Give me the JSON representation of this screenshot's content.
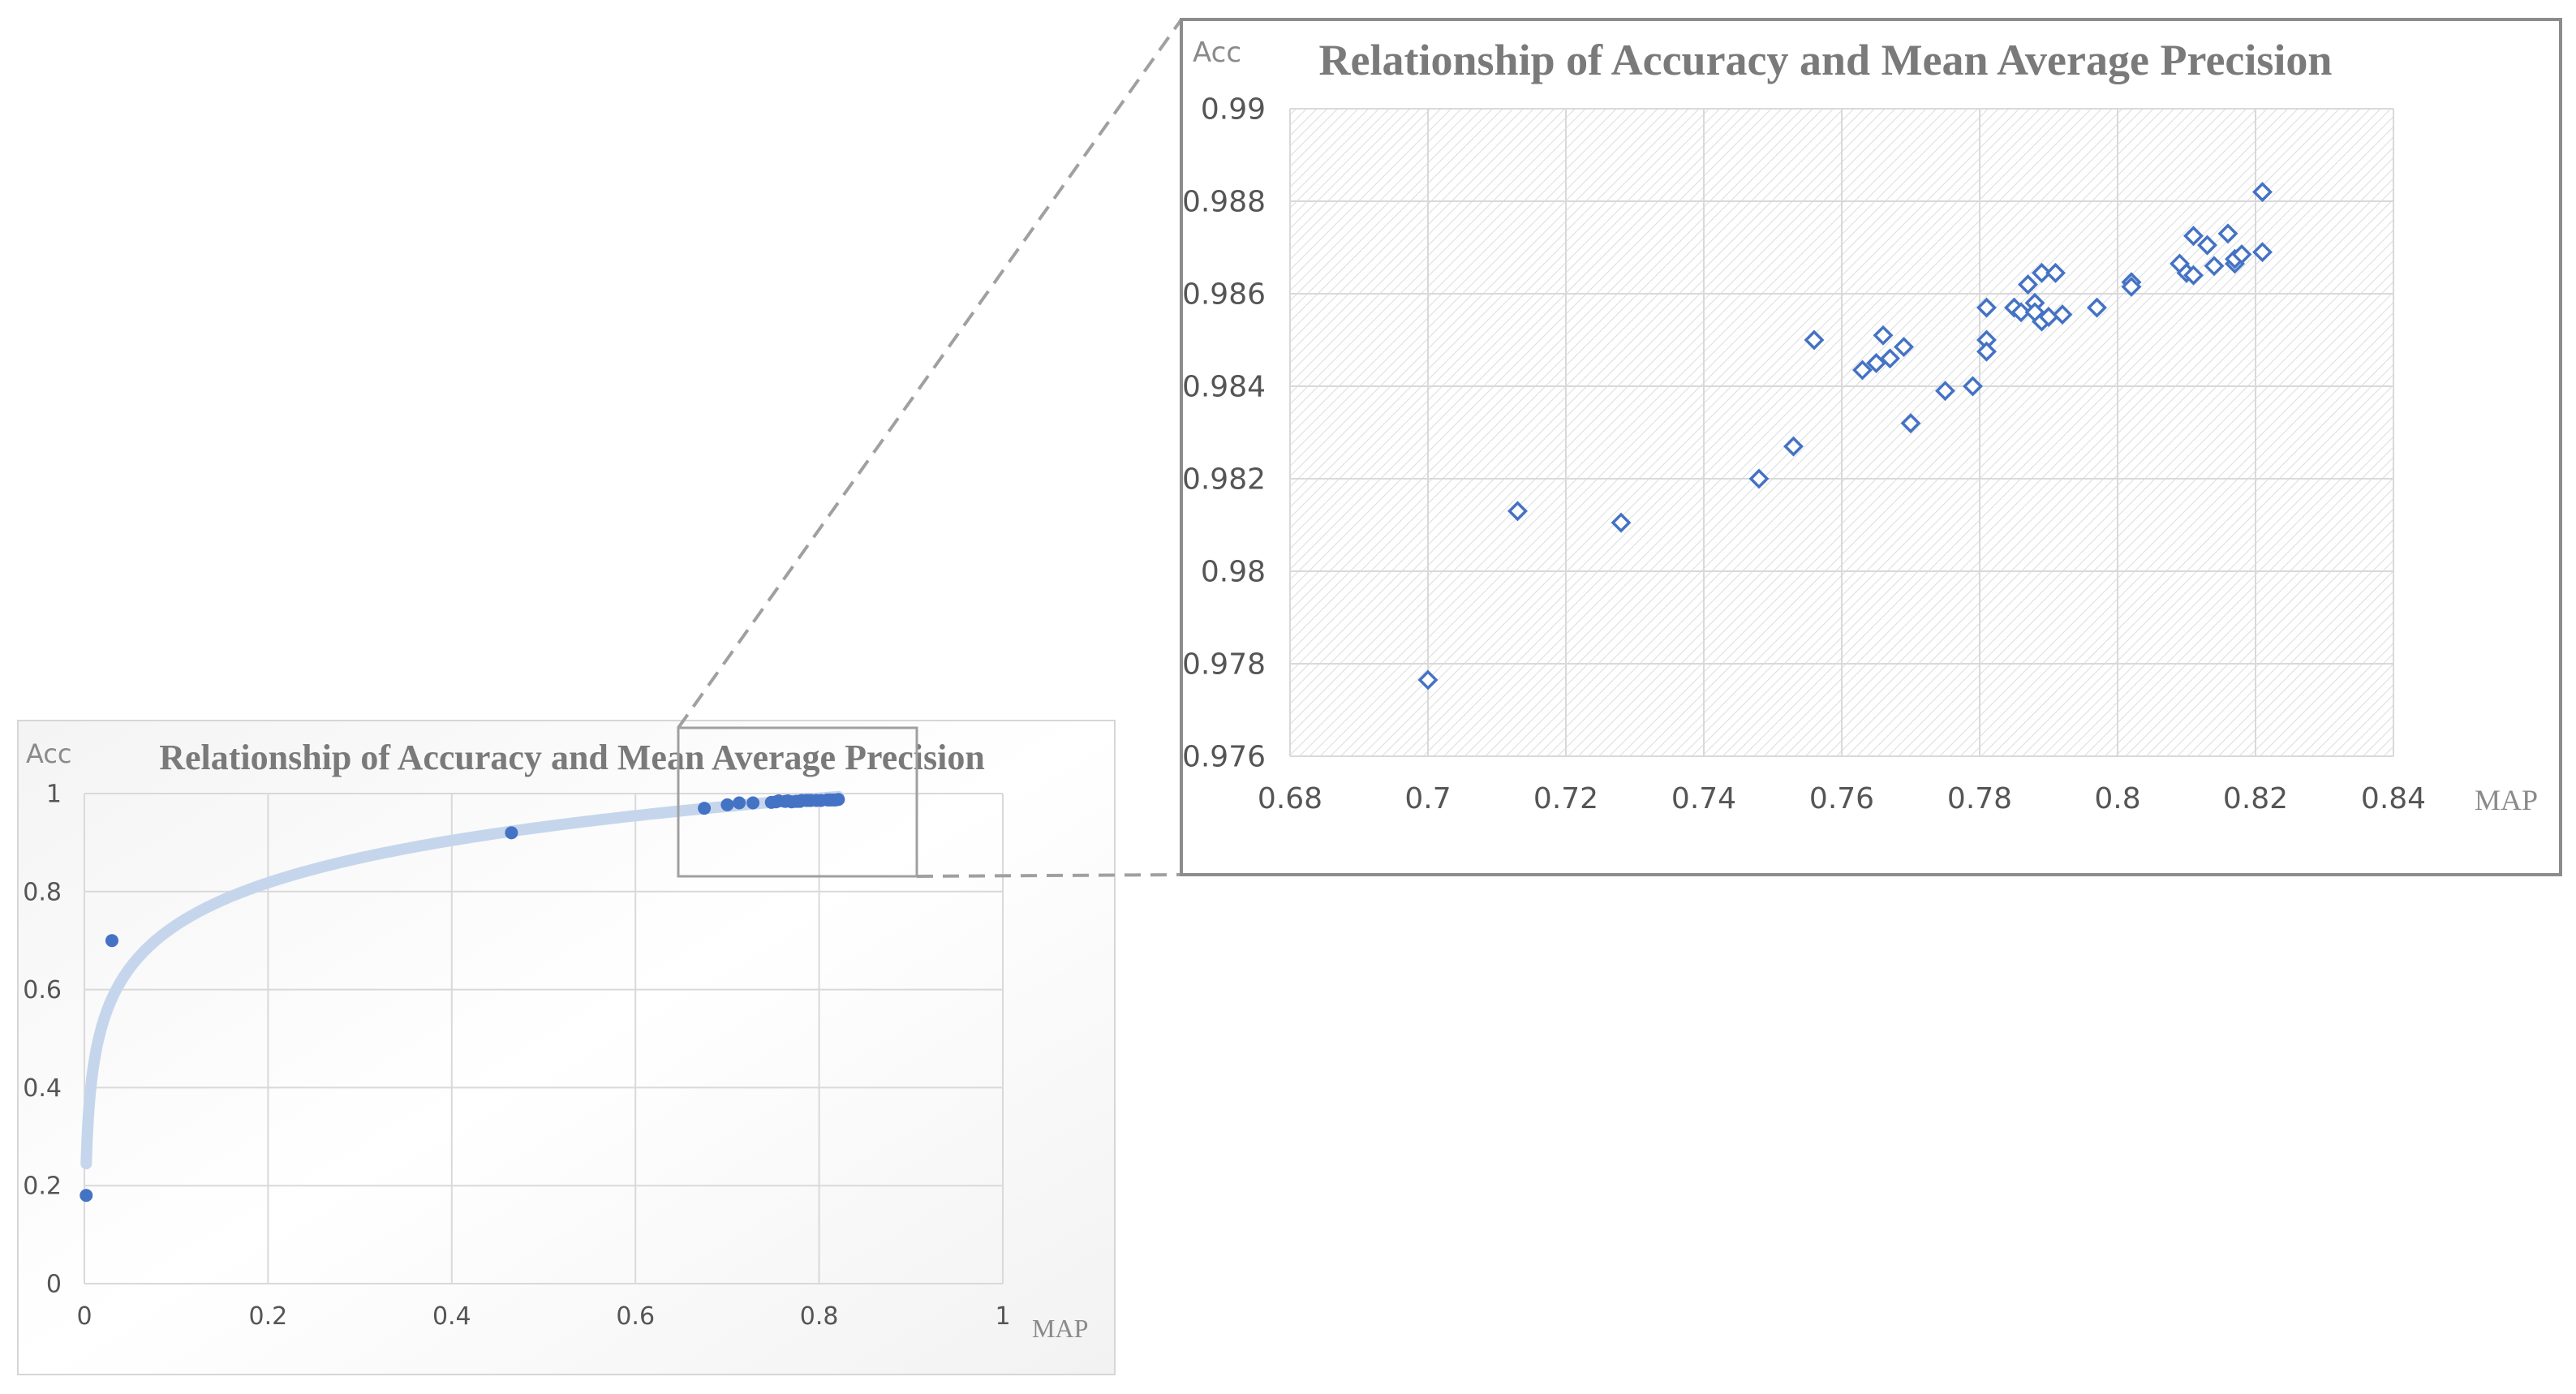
{
  "chart_data": [
    {
      "id": "overview",
      "type": "scatter",
      "title": "Relationship of Accuracy and Mean Average Precision",
      "xlabel": "MAP",
      "ylabel": "Acc",
      "xlim": [
        0,
        1
      ],
      "ylim": [
        0,
        1
      ],
      "xticks": [
        0,
        0.2,
        0.4,
        0.6,
        0.8,
        1
      ],
      "yticks": [
        0,
        0.2,
        0.4,
        0.6,
        0.8,
        1
      ],
      "x_tick_labels": [
        "0",
        "0.2",
        "0.4",
        "0.6",
        "0.8",
        "1"
      ],
      "y_tick_labels": [
        "0",
        "0.2",
        "0.4",
        "0.6",
        "0.8",
        "1"
      ],
      "grid": true,
      "trendline": "logarithmic",
      "marker": "circle",
      "points": [
        [
          0.002,
          0.18
        ],
        [
          0.03,
          0.7
        ],
        [
          0.465,
          0.92
        ],
        [
          0.675,
          0.97
        ],
        [
          0.7,
          0.977
        ],
        [
          0.713,
          0.981
        ],
        [
          0.728,
          0.981
        ],
        [
          0.748,
          0.982
        ],
        [
          0.753,
          0.983
        ],
        [
          0.756,
          0.985
        ],
        [
          0.763,
          0.984
        ],
        [
          0.766,
          0.985
        ],
        [
          0.77,
          0.983
        ],
        [
          0.775,
          0.984
        ],
        [
          0.779,
          0.984
        ],
        [
          0.781,
          0.986
        ],
        [
          0.786,
          0.986
        ],
        [
          0.789,
          0.986
        ],
        [
          0.791,
          0.986
        ],
        [
          0.797,
          0.986
        ],
        [
          0.802,
          0.986
        ],
        [
          0.809,
          0.987
        ],
        [
          0.811,
          0.987
        ],
        [
          0.813,
          0.987
        ],
        [
          0.816,
          0.987
        ],
        [
          0.818,
          0.987
        ],
        [
          0.821,
          0.988
        ]
      ]
    },
    {
      "id": "zoom",
      "type": "scatter",
      "title": "Relationship of Accuracy and Mean Average Precision",
      "xlabel": "MAP",
      "ylabel": "Acc",
      "xlim": [
        0.68,
        0.84
      ],
      "ylim": [
        0.976,
        0.99
      ],
      "xticks": [
        0.68,
        0.7,
        0.72,
        0.74,
        0.76,
        0.78,
        0.8,
        0.82,
        0.84
      ],
      "yticks": [
        0.976,
        0.978,
        0.98,
        0.982,
        0.984,
        0.986,
        0.988,
        0.99
      ],
      "x_tick_labels": [
        "0.68",
        "0.7",
        "0.72",
        "0.74",
        "0.76",
        "0.78",
        "0.8",
        "0.82",
        "0.84"
      ],
      "y_tick_labels": [
        "0.976",
        "0.978",
        "0.98",
        "0.982",
        "0.984",
        "0.986",
        "0.988",
        "0.99"
      ],
      "grid": true,
      "background": "hatched",
      "marker": "diamond",
      "points": [
        [
          0.7,
          0.97765
        ],
        [
          0.713,
          0.9813
        ],
        [
          0.728,
          0.98105
        ],
        [
          0.748,
          0.982
        ],
        [
          0.753,
          0.9827
        ],
        [
          0.756,
          0.985
        ],
        [
          0.763,
          0.98435
        ],
        [
          0.765,
          0.9845
        ],
        [
          0.766,
          0.9851
        ],
        [
          0.767,
          0.9846
        ],
        [
          0.769,
          0.98485
        ],
        [
          0.77,
          0.9832
        ],
        [
          0.775,
          0.9839
        ],
        [
          0.779,
          0.984
        ],
        [
          0.781,
          0.9857
        ],
        [
          0.781,
          0.985
        ],
        [
          0.781,
          0.98475
        ],
        [
          0.785,
          0.9857
        ],
        [
          0.786,
          0.9856
        ],
        [
          0.787,
          0.9862
        ],
        [
          0.788,
          0.9858
        ],
        [
          0.788,
          0.9856
        ],
        [
          0.789,
          0.9854
        ],
        [
          0.789,
          0.98645
        ],
        [
          0.79,
          0.9855
        ],
        [
          0.791,
          0.98645
        ],
        [
          0.792,
          0.98555
        ],
        [
          0.797,
          0.9857
        ],
        [
          0.802,
          0.98625
        ],
        [
          0.802,
          0.98615
        ],
        [
          0.809,
          0.98665
        ],
        [
          0.81,
          0.98645
        ],
        [
          0.811,
          0.9864
        ],
        [
          0.811,
          0.98725
        ],
        [
          0.813,
          0.98705
        ],
        [
          0.814,
          0.9866
        ],
        [
          0.816,
          0.9873
        ],
        [
          0.817,
          0.98665
        ],
        [
          0.817,
          0.98675
        ],
        [
          0.818,
          0.98685
        ],
        [
          0.821,
          0.9869
        ],
        [
          0.821,
          0.9882
        ]
      ]
    }
  ],
  "colors": {
    "marker": "#4472c4",
    "trend": "#c5d6ec",
    "grid": "#d9d9d9",
    "frame": "#a6a6a6",
    "connector": "#a0a0a0",
    "hatch": "#dcdcdc"
  }
}
